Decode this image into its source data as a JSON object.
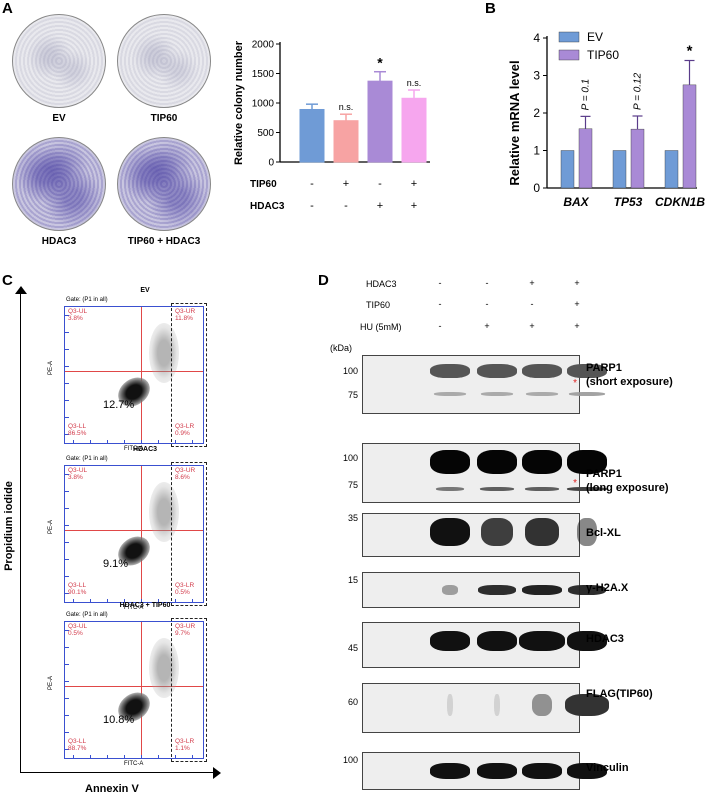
{
  "panels": {
    "A": "A",
    "B": "B",
    "C": "C",
    "D": "D"
  },
  "panelA": {
    "plates": [
      {
        "label": "EV",
        "tone": "light"
      },
      {
        "label": "TIP60",
        "tone": "light"
      },
      {
        "label": "HDAC3",
        "tone": "dark"
      },
      {
        "label": "TIP60 + HDAC3",
        "tone": "dark"
      }
    ],
    "row_labels": {
      "tip60": "TIP60",
      "hdac3": "HDAC3"
    },
    "tip60_signs": [
      "-",
      "+",
      "-",
      "+"
    ],
    "hdac3_signs": [
      "-",
      "-",
      "+",
      "+"
    ]
  },
  "chart_data": [
    {
      "type": "bar",
      "ylabel": "Relative colony number",
      "ylim": [
        0,
        2000
      ],
      "yticks": [
        0,
        500,
        1000,
        1500,
        2000
      ],
      "categories": [
        "EV",
        "TIP60",
        "HDAC3",
        "TIP60 + HDAC3"
      ],
      "values": [
        890,
        700,
        1370,
        1080
      ],
      "errors": [
        90,
        110,
        160,
        140
      ],
      "colors": [
        "#6f9bd6",
        "#f7a3a3",
        "#a98ad6",
        "#f6a6ee"
      ],
      "annotations": [
        "",
        "n.s.",
        "*",
        "n.s."
      ]
    },
    {
      "type": "bar",
      "ylabel": "Relative mRNA level",
      "ylim": [
        0,
        4
      ],
      "yticks": [
        0,
        1,
        2,
        3,
        4
      ],
      "categories": [
        "BAX",
        "TP53",
        "CDKN1B"
      ],
      "series": [
        {
          "name": "EV",
          "values": [
            1,
            1,
            1
          ],
          "errors": [
            0,
            0,
            0
          ],
          "color": "#6f9bd6"
        },
        {
          "name": "TIP60",
          "values": [
            1.58,
            1.57,
            2.75
          ],
          "errors": [
            0.33,
            0.35,
            0.65
          ],
          "color": "#a98ad6"
        }
      ],
      "annotations": [
        "P = 0.1",
        "P = 0.12",
        "*"
      ],
      "legend": "top-left"
    }
  ],
  "panelC": {
    "yaxis": "Propidium iodide",
    "xaxis": "Annexin V",
    "plots": [
      {
        "title": "EV",
        "gate": "Gate: (P1 in all)",
        "ul": "Q3-UL\n3.8%",
        "ur": "Q3-UR\n11.8%",
        "ll": "Q3-LL\n86.5%",
        "lr": "Q3-LR\n0.9%",
        "apoptosis": "12.7%"
      },
      {
        "title": "HDAC3",
        "gate": "Gate: (P1 in all)",
        "ul": "Q3-UL\n3.8%",
        "ur": "Q3-UR\n8.6%",
        "ll": "Q3-LL\n90.1%",
        "lr": "Q3-LR\n0.5%",
        "apoptosis": "9.1%"
      },
      {
        "title": "HDAC3 + TIP60",
        "gate": "Gate: (P1 in all)",
        "ul": "Q3-UL\n0.5%",
        "ur": "Q3-UR\n9.7%",
        "ll": "Q3-LL\n88.7%",
        "lr": "Q3-LR\n1.1%",
        "apoptosis": "10.8%"
      }
    ],
    "axis_small_y": "PE-A",
    "axis_small_x": "FITC-A"
  },
  "panelD": {
    "conditions": [
      {
        "name": "HDAC3",
        "signs": [
          "-",
          "-",
          "+",
          "+"
        ]
      },
      {
        "name": "TIP60",
        "signs": [
          "-",
          "-",
          "-",
          "+"
        ]
      },
      {
        "name": "HU (5mM)",
        "signs": [
          "-",
          "+",
          "+",
          "+"
        ]
      }
    ],
    "kda": "(kDa)",
    "blots": [
      {
        "label": "PARP1\n(short exposure)",
        "markers": [
          "100",
          "75"
        ]
      },
      {
        "label": "PARP1\n(long exposure)",
        "markers": [
          "100",
          "75"
        ]
      },
      {
        "label": "Bcl-XL",
        "markers": [
          "35"
        ]
      },
      {
        "label": "γ-H2A.X",
        "markers": [
          "15"
        ]
      },
      {
        "label": "HDAC3",
        "markers": [
          "45"
        ]
      },
      {
        "label": "FLAG(TIP60)",
        "markers": [
          "60"
        ]
      },
      {
        "label": "Vinculin",
        "markers": [
          "100"
        ]
      }
    ],
    "asterisk": "*"
  }
}
